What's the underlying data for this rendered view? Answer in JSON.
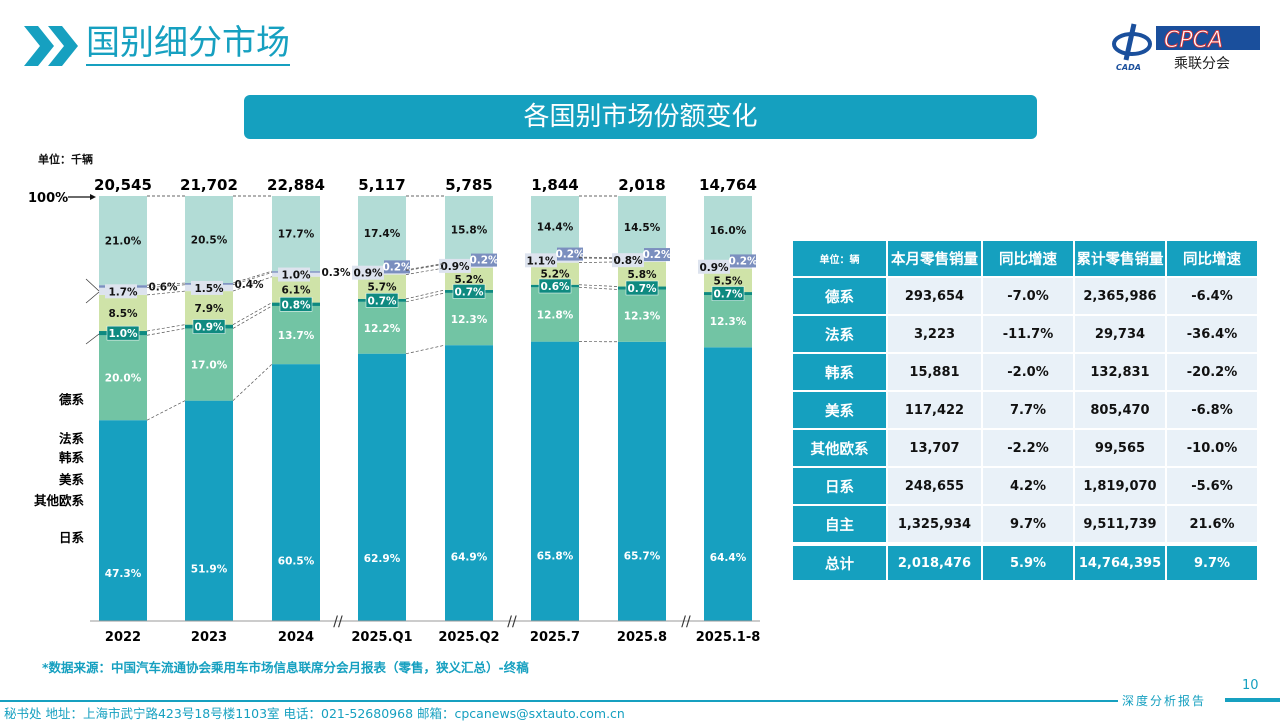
{
  "header": {
    "title": "国别细分市场",
    "logo_text": "CPCA",
    "logo_sub": "乘联分会",
    "logo_mark": "CADA"
  },
  "banner": "各国别市场份额变化",
  "unit": "单位：千辆",
  "chart_data": {
    "type": "stacked-bar-100",
    "title": "各国别市场份额变化",
    "top_label": "100%",
    "categories": [
      "2022",
      "2023",
      "2024",
      "2025.Q1",
      "2025.Q2",
      "2025.7",
      "2025.8",
      "2025.1-8"
    ],
    "totals": [
      "20,545",
      "21,702",
      "22,884",
      "5,117",
      "5,785",
      "1,844",
      "2,018",
      "14,764"
    ],
    "series": [
      {
        "name": "自主",
        "color": "#17a0c0",
        "values": [
          47.3,
          51.9,
          60.5,
          62.9,
          64.9,
          65.8,
          65.7,
          64.4
        ]
      },
      {
        "name": "日系",
        "color": "#72c4a4",
        "values": [
          20.0,
          17.0,
          13.7,
          12.2,
          12.3,
          12.8,
          12.3,
          12.3
        ]
      },
      {
        "name": "其他欧系",
        "color": "#0e8a80",
        "values": [
          1.0,
          0.9,
          0.8,
          0.7,
          0.7,
          0.6,
          0.7,
          0.7
        ]
      },
      {
        "name": "美系",
        "color": "#cfe3a8",
        "values": [
          8.5,
          7.9,
          6.1,
          5.7,
          5.2,
          5.2,
          5.8,
          5.5
        ]
      },
      {
        "name": "韩系",
        "color": "#dde3ee",
        "values": [
          1.7,
          1.5,
          1.0,
          0.9,
          0.9,
          1.1,
          0.8,
          0.9
        ]
      },
      {
        "name": "法系",
        "color": "#7b8fbf",
        "values": [
          0.6,
          0.4,
          0.3,
          0.2,
          0.2,
          0.2,
          0.2,
          0.2
        ]
      },
      {
        "name": "德系",
        "color": "#b2dcd6",
        "values": [
          21.0,
          20.5,
          17.7,
          17.4,
          15.8,
          14.4,
          14.5,
          16.0
        ]
      }
    ],
    "ylim": [
      0,
      100
    ],
    "unit": "%"
  },
  "table": {
    "headers": [
      "单位：辆",
      "本月零售销量",
      "同比增速",
      "累计零售销量",
      "同比增速"
    ],
    "rows": [
      [
        "德系",
        "293,654",
        "-7.0%",
        "2,365,986",
        "-6.4%"
      ],
      [
        "法系",
        "3,223",
        "-11.7%",
        "29,734",
        "-36.4%"
      ],
      [
        "韩系",
        "15,881",
        "-2.0%",
        "132,831",
        "-20.2%"
      ],
      [
        "美系",
        "117,422",
        "7.7%",
        "805,470",
        "-6.8%"
      ],
      [
        "其他欧系",
        "13,707",
        "-2.2%",
        "99,565",
        "-10.0%"
      ],
      [
        "日系",
        "248,655",
        "4.2%",
        "1,819,070",
        "-5.6%"
      ],
      [
        "自主",
        "1,325,934",
        "9.7%",
        "9,511,739",
        "21.6%"
      ]
    ],
    "total": [
      "总计",
      "2,018,476",
      "5.9%",
      "14,764,395",
      "9.7%"
    ]
  },
  "footer": {
    "source": "*数据来源：中国汽车流通协会乘用车市场信息联席分会月报表（零售，狭义汇总）-终稿",
    "page": "10",
    "report": "深度分析报告",
    "address": "秘书处  地址：上海市武宁路423号18号楼1103室  电话：021-52680968  邮箱：cpcanews@sxtauto.com.cn"
  }
}
